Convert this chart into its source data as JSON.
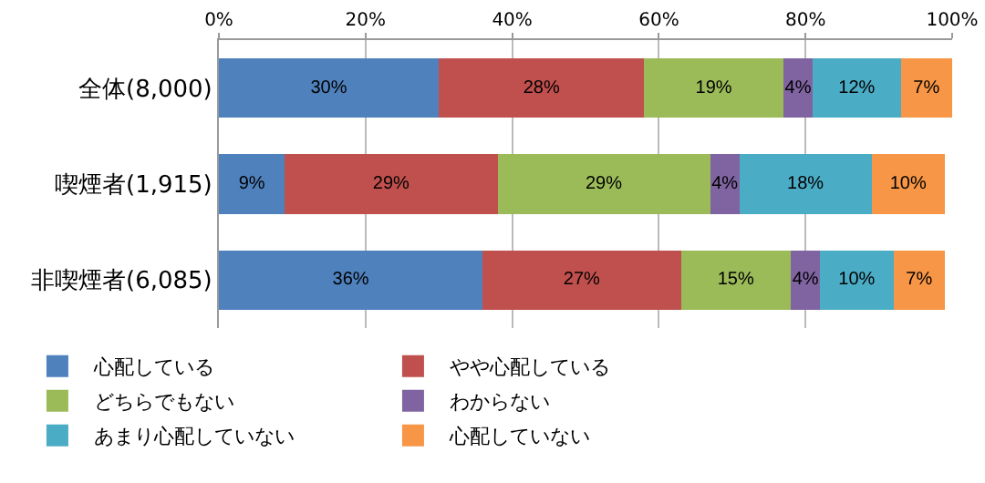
{
  "chart_data": {
    "type": "bar",
    "orientation": "horizontal",
    "stacked": true,
    "categories": [
      "全体(8,000)",
      "喫煙者(1,915)",
      "非喫煙者(6,085)"
    ],
    "series": [
      {
        "name": "心配している",
        "color": "#4f81bd",
        "values": [
          30,
          9,
          36
        ],
        "value_labels": [
          "30%",
          "9%",
          "36%"
        ]
      },
      {
        "name": "やや心配している",
        "color": "#c0504d",
        "values": [
          28,
          29,
          27
        ],
        "value_labels": [
          "28%",
          "29%",
          "27%"
        ]
      },
      {
        "name": "どちらでもない",
        "color": "#9bbb59",
        "values": [
          19,
          29,
          15
        ],
        "value_labels": [
          "19%",
          "29%",
          "15%"
        ]
      },
      {
        "name": "わからない",
        "color": "#8064a2",
        "values": [
          4,
          4,
          4
        ],
        "value_labels": [
          "4%",
          "4%",
          "4%"
        ]
      },
      {
        "name": "あまり心配していない",
        "color": "#4bacc6",
        "values": [
          12,
          18,
          10
        ],
        "value_labels": [
          "12%",
          "18%",
          "10%"
        ]
      },
      {
        "name": "心配していない",
        "color": "#f79646",
        "values": [
          7,
          10,
          7
        ],
        "value_labels": [
          "7%",
          "10%",
          "7%"
        ]
      }
    ],
    "xlim": [
      0,
      100
    ],
    "xticks": [
      {
        "value": 0,
        "label": "0%"
      },
      {
        "value": 20,
        "label": "20%"
      },
      {
        "value": 40,
        "label": "40%"
      },
      {
        "value": 60,
        "label": "60%"
      },
      {
        "value": 80,
        "label": "80%"
      },
      {
        "value": 100,
        "label": "100%"
      }
    ],
    "grid": "x",
    "legend": "bottom"
  }
}
